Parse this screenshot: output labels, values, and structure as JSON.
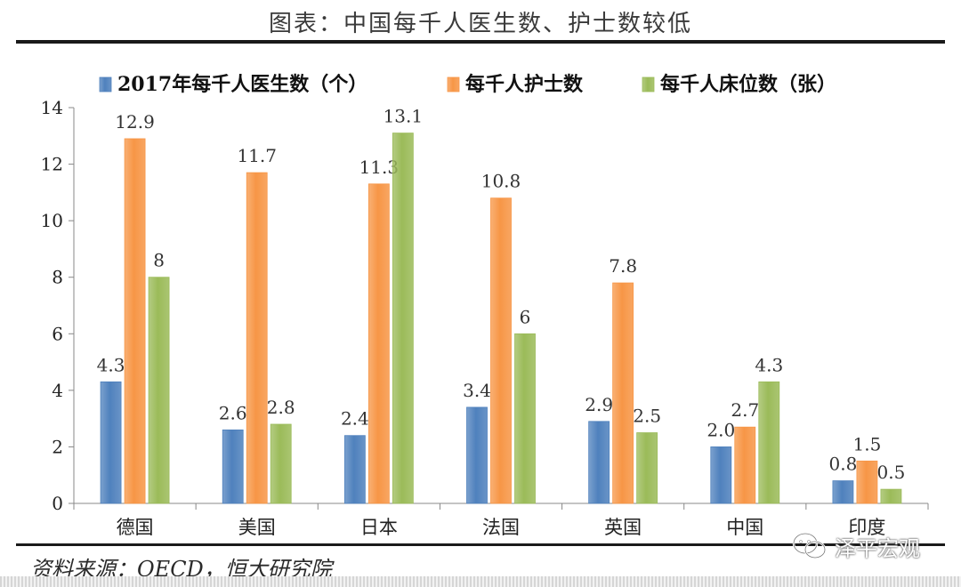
{
  "page": {
    "title": "图表：中国每千人医生数、护士数较低",
    "source": "资料来源：OECD，恒大研究院",
    "watermark": "泽平宏观"
  },
  "colors": {
    "series": [
      "#4f81bd",
      "#f79646",
      "#9bbb59"
    ]
  },
  "icons": {
    "watermark_icon": "wechat-icon"
  },
  "chart_data": {
    "type": "bar",
    "categories": [
      "德国",
      "美国",
      "日本",
      "法国",
      "英国",
      "中国",
      "印度"
    ],
    "series": [
      {
        "name": "2017年每千人医生数（个）",
        "values": [
          4.3,
          2.6,
          2.4,
          3.4,
          2.9,
          2.0,
          0.8
        ],
        "labels": [
          "4.3",
          "2.6",
          "2.4",
          "3.4",
          "2.9",
          "2.0",
          "0.8"
        ]
      },
      {
        "name": "每千人护士数",
        "values": [
          12.9,
          11.7,
          11.3,
          10.8,
          7.8,
          2.7,
          1.5
        ],
        "labels": [
          "12.9",
          "11.7",
          "11.3",
          "10.8",
          "7.8",
          "2.7",
          "1.5"
        ]
      },
      {
        "name": "每千人床位数（张）",
        "values": [
          8,
          2.8,
          13.1,
          6,
          2.5,
          4.3,
          0.5
        ],
        "labels": [
          "8",
          "2.8",
          "13.1",
          "6",
          "2.5",
          "4.3",
          "0.5"
        ]
      }
    ],
    "yticks": [
      "0",
      "2",
      "4",
      "6",
      "8",
      "10",
      "12",
      "14"
    ],
    "ylim": [
      0,
      14
    ],
    "legend_position": "top",
    "grid": false
  }
}
